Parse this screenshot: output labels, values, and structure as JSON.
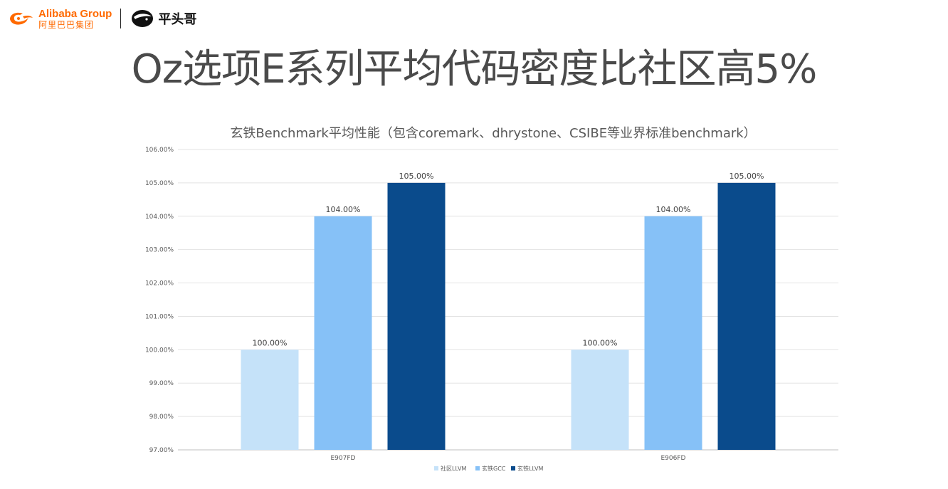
{
  "header": {
    "alibaba_en": "Alibaba Group",
    "alibaba_cn": "阿里巴巴集团",
    "pingtouge": "平头哥"
  },
  "slide_title": "Oz选项E系列平均代码密度比社区高5%",
  "colors": {
    "accent": "#ff6a00",
    "series": [
      "#c5e2f9",
      "#86c1f7",
      "#0a4b8c"
    ]
  },
  "chart_data": {
    "type": "bar",
    "title": "玄铁Benchmark平均性能（包含coremark、dhrystone、CSIBE等业界标准benchmark）",
    "categories": [
      "E907FD",
      "E906FD"
    ],
    "series": [
      {
        "name": "社区LLVM",
        "values": [
          100.0,
          100.0
        ],
        "labels": [
          "100.00%",
          "100.00%"
        ]
      },
      {
        "name": "玄铁GCC",
        "values": [
          104.0,
          104.0
        ],
        "labels": [
          "104.00%",
          "104.00%"
        ]
      },
      {
        "name": "玄铁LLVM",
        "values": [
          105.0,
          105.0
        ],
        "labels": [
          "105.00%",
          "105.00%"
        ]
      }
    ],
    "ylim": [
      97,
      106
    ],
    "yticks": [
      "97.00%",
      "98.00%",
      "99.00%",
      "100.00%",
      "101.00%",
      "102.00%",
      "103.00%",
      "104.00%",
      "105.00%",
      "106.00%"
    ],
    "xlabel": "",
    "ylabel": "",
    "grid": true,
    "legend": "bottom"
  }
}
